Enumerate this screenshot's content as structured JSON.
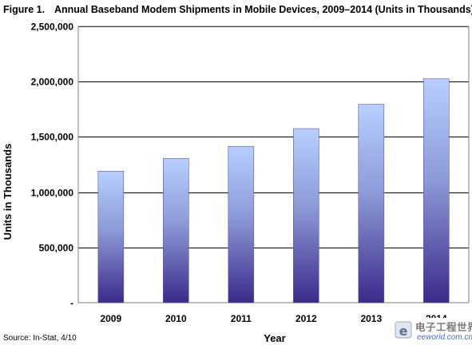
{
  "figure": {
    "number": "Figure 1.",
    "title": "Annual Baseband Modem Shipments in Mobile Devices, 2009–2014 (Units in Thousands)"
  },
  "source": "Source: In-Stat, 4/10",
  "watermark": {
    "main": "电子工程世界",
    "sub": "eeworld.com.cn"
  },
  "colors": {
    "bar_top": "#b7cfff",
    "bar_bottom": "#3b2a8a",
    "grid": "#000000",
    "plot_border": "#808080"
  },
  "chart_data": {
    "type": "bar",
    "categories": [
      "2009",
      "2010",
      "2011",
      "2012",
      "2013",
      "2014"
    ],
    "values": [
      1190000,
      1305000,
      1415000,
      1575000,
      1795000,
      2025000
    ],
    "xlabel": "Year",
    "ylabel": "Units in Thousands",
    "ylim": [
      0,
      2500000
    ],
    "yticks": [
      0,
      500000,
      1000000,
      1500000,
      2000000,
      2500000
    ],
    "ytick_labels": [
      "-",
      "500,000",
      "1,000,000",
      "1,500,000",
      "2,000,000",
      "2,500,000"
    ],
    "grid": "horizontal",
    "legend": "none"
  }
}
